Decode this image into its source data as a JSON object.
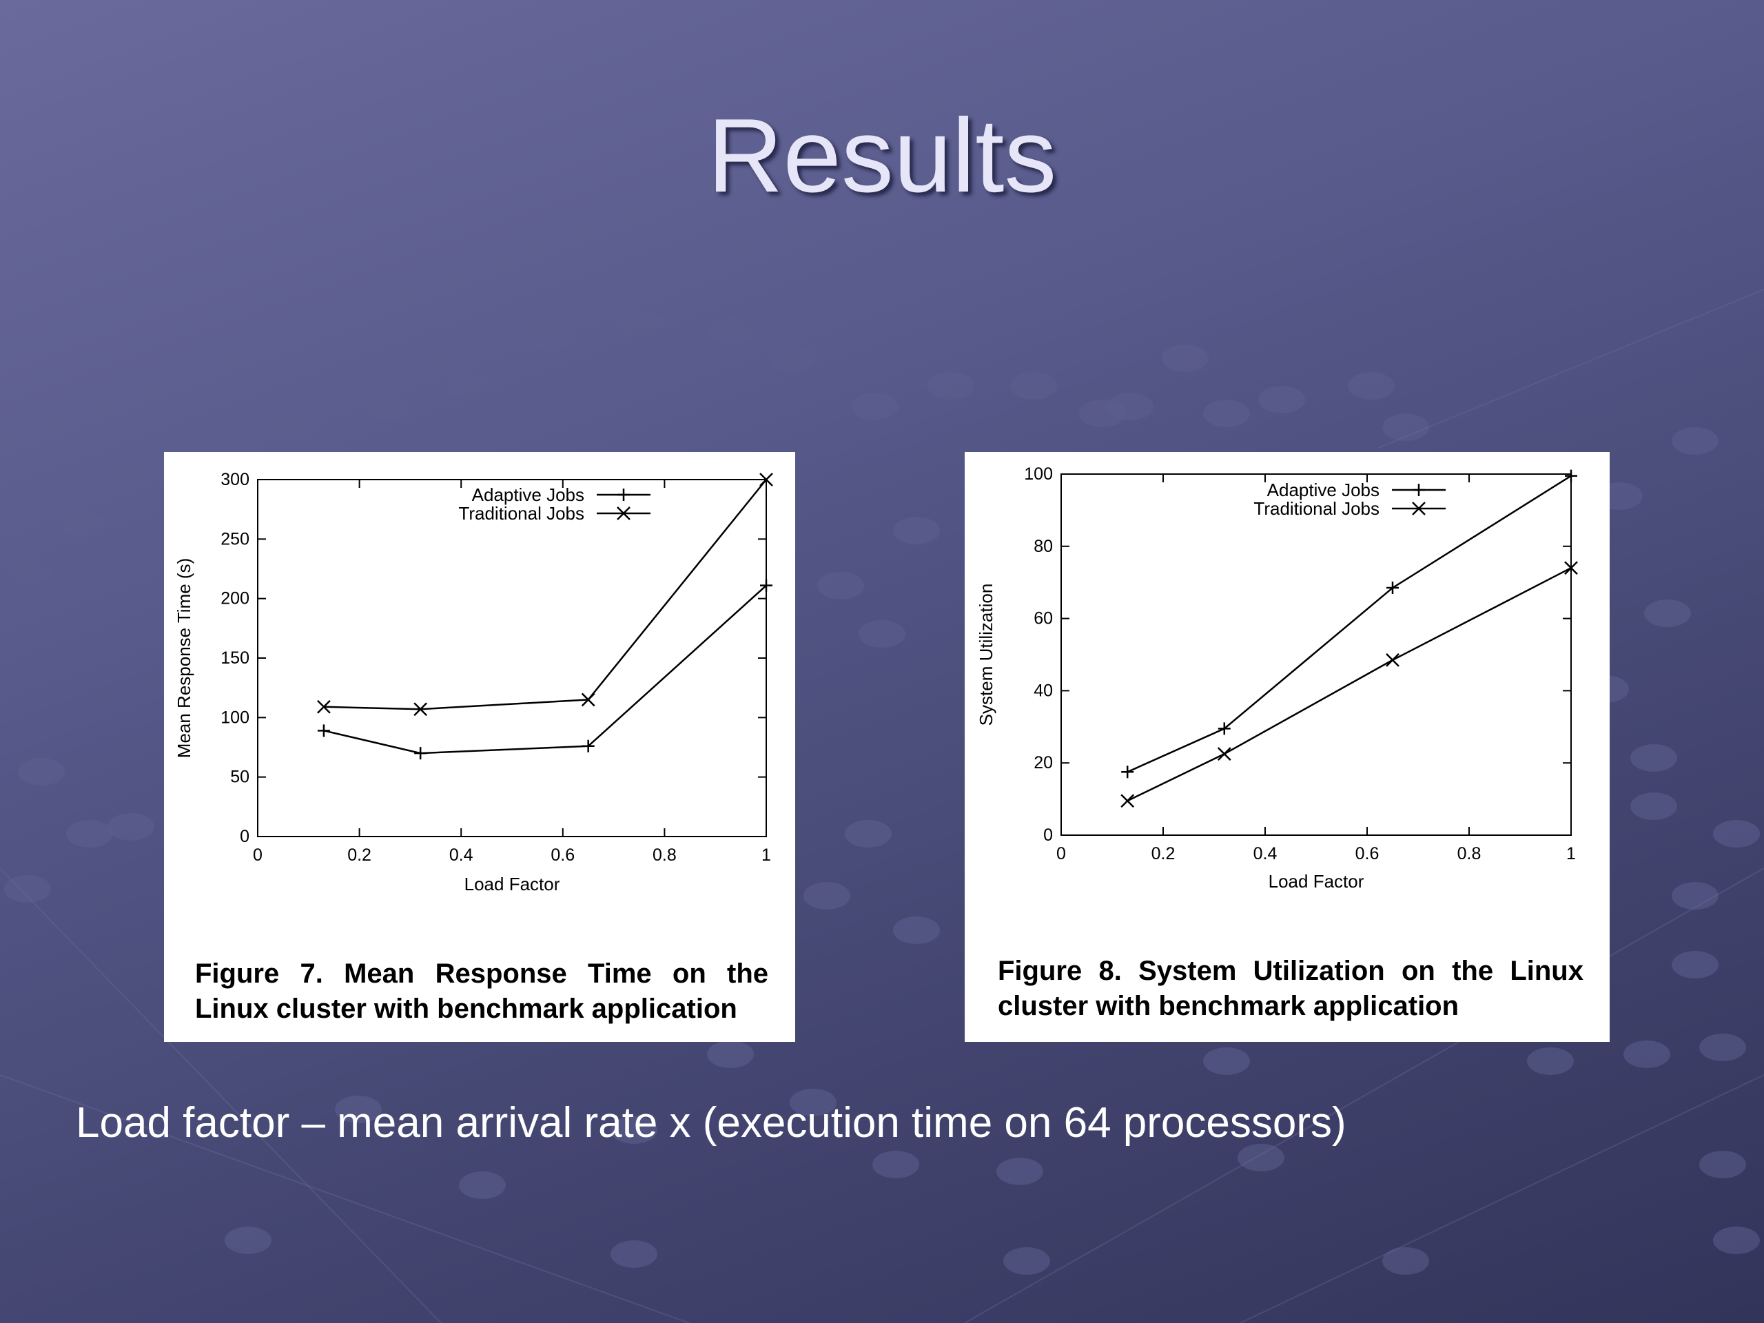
{
  "slide": {
    "title": "Results",
    "footnote": "Load factor – mean arrival rate x (execution time on 64 processors)"
  },
  "colors": {
    "background": "#555888",
    "title": "#e6e6f8",
    "panel": "#ffffff",
    "lines": "#000000"
  },
  "chart_data": [
    {
      "type": "line",
      "caption": "Figure 7. Mean Response Time on the Linux cluster with benchmark application",
      "xlabel": "Load Factor",
      "ylabel": "Mean Response Time (s)",
      "xlim": [
        0,
        1
      ],
      "ylim": [
        0,
        300
      ],
      "xticks": [
        0,
        0.2,
        0.4,
        0.6,
        0.8,
        1
      ],
      "xtick_labels": [
        "0",
        "0.2",
        "0.4",
        "0.6",
        "0.8",
        "1"
      ],
      "yticks": [
        0,
        50,
        100,
        150,
        200,
        250,
        300
      ],
      "ytick_labels": [
        "0",
        "50",
        "100",
        "150",
        "200",
        "250",
        "300"
      ],
      "legend_position": "top-right",
      "grid": false,
      "series": [
        {
          "name": "Adaptive Jobs",
          "marker": "plus",
          "x": [
            0.13,
            0.32,
            0.65,
            1.0
          ],
          "y": [
            89,
            70,
            76,
            211
          ]
        },
        {
          "name": "Traditional Jobs",
          "marker": "cross",
          "x": [
            0.13,
            0.32,
            0.65,
            1.0
          ],
          "y": [
            109,
            107,
            115,
            300
          ]
        }
      ]
    },
    {
      "type": "line",
      "caption": "Figure 8. System Utilization on the Linux cluster with benchmark application",
      "xlabel": "Load Factor",
      "ylabel": "System Utilization",
      "xlim": [
        0,
        1
      ],
      "ylim": [
        0,
        100
      ],
      "xticks": [
        0,
        0.2,
        0.4,
        0.6,
        0.8,
        1
      ],
      "xtick_labels": [
        "0",
        "0.2",
        "0.4",
        "0.6",
        "0.8",
        "1"
      ],
      "yticks": [
        0,
        20,
        40,
        60,
        80,
        100
      ],
      "ytick_labels": [
        "0",
        "20",
        "40",
        "60",
        "80",
        "100"
      ],
      "legend_position": "top-right",
      "grid": false,
      "series": [
        {
          "name": "Adaptive Jobs",
          "marker": "plus",
          "x": [
            0.13,
            0.32,
            0.65,
            1.0
          ],
          "y": [
            17.5,
            29.5,
            68.5,
            99.5
          ]
        },
        {
          "name": "Traditional Jobs",
          "marker": "cross",
          "x": [
            0.13,
            0.32,
            0.65,
            1.0
          ],
          "y": [
            9.5,
            22.5,
            48.5,
            74
          ]
        }
      ]
    }
  ]
}
